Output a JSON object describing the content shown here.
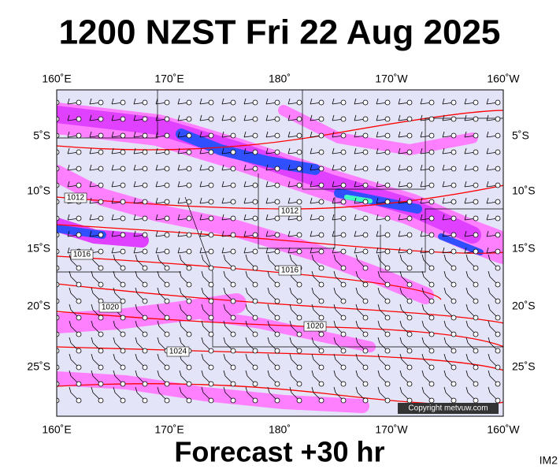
{
  "title": "1200 NZST Fri 22 Aug 2025",
  "footer": "Forecast +30 hr",
  "image_id": "IM2",
  "copyright": "Copyright metvuw.com",
  "longitude_labels": [
    "160˚E",
    "170˚E",
    "180˚",
    "170˚W",
    "160˚W"
  ],
  "latitude_labels": [
    "5˚S",
    "10˚S",
    "15˚S",
    "20˚S",
    "25˚S"
  ],
  "isobar_labels": [
    "1012",
    "1012",
    "1016",
    "1016",
    "1020",
    "1020",
    "1024"
  ]
}
